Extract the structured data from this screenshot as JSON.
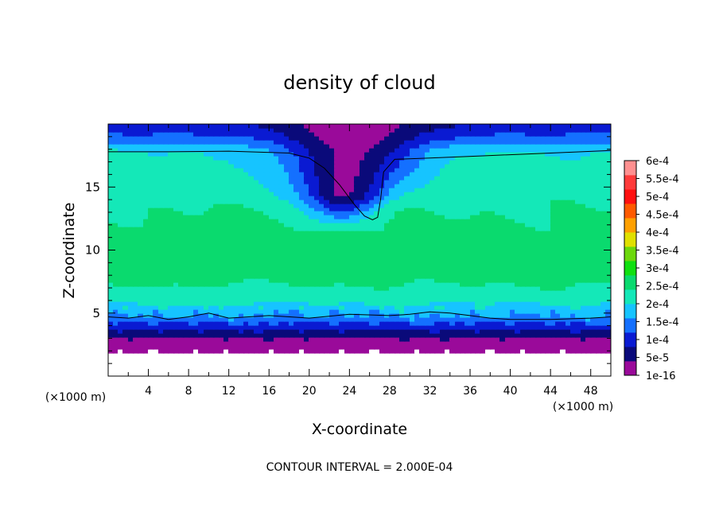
{
  "chart_data": {
    "type": "heatmap",
    "title": "density of cloud",
    "xlabel": "X-coordinate",
    "ylabel": "Z-coordinate",
    "x_unit_label": "(×1000 m)",
    "y_unit_label": "(×1000 m)",
    "footer": "CONTOUR INTERVAL = 2.000E-04",
    "xlim": [
      0,
      50
    ],
    "ylim": [
      0,
      20
    ],
    "x_ticks": [
      4,
      8,
      12,
      16,
      20,
      24,
      28,
      32,
      36,
      40,
      44,
      48
    ],
    "y_ticks": [
      5,
      10,
      15
    ],
    "colorbar": {
      "labels": [
        "6e-4",
        "5.5e-4",
        "5e-4",
        "4.5e-4",
        "4e-4",
        "3.5e-4",
        "3e-4",
        "2.5e-4",
        "2e-4",
        "1.5e-4",
        "1e-4",
        "5e-5",
        "1e-16"
      ],
      "colors": [
        "#9a0a9a",
        "#0a0a7a",
        "#0a1ad2",
        "#1470ff",
        "#16c4ff",
        "#14e8b8",
        "#0ada6e",
        "#10e010",
        "#6cd80c",
        "#e0e000",
        "#ffa000",
        "#ff5a00",
        "#ff1010",
        "#ff3a3a",
        "#ff9090"
      ]
    },
    "cloud_profile": {
      "z": [
        0.0,
        1.8,
        2.4,
        3.2,
        4.0,
        4.7,
        6.0,
        8.0,
        10.0,
        13.0,
        15.5,
        17.0,
        17.9,
        18.8,
        20.0
      ],
      "density": [
        0.0,
        0.0,
        5e-06,
        5e-05,
        0.0001,
        0.000155,
        0.00021,
        0.000255,
        0.00026,
        0.00024,
        0.00022,
        0.00021,
        0.0002,
        0.00014,
        9e-05
      ]
    },
    "hole": {
      "x_center": 24.5,
      "z_bottom": 12.4
    },
    "contours": [
      {
        "level": 0.0002,
        "upper_x": [
          0,
          6,
          12,
          18,
          20,
          21.5,
          23,
          24.5,
          25.5,
          26.3,
          26.8,
          27.1,
          27.4,
          28.5,
          32,
          38,
          44,
          50
        ],
        "upper_z": [
          17.8,
          17.8,
          17.85,
          17.7,
          17.3,
          16.5,
          15.2,
          13.6,
          12.7,
          12.4,
          12.6,
          14.0,
          16.2,
          17.2,
          17.3,
          17.5,
          17.7,
          17.9
        ],
        "lower_x": [
          0,
          2,
          4,
          6,
          8,
          10,
          12,
          16,
          20,
          24,
          28,
          30,
          32,
          34,
          36,
          38,
          40,
          44,
          48,
          50
        ],
        "lower_z": [
          4.7,
          4.6,
          4.8,
          4.5,
          4.7,
          5.0,
          4.6,
          4.8,
          4.6,
          4.9,
          4.8,
          4.9,
          5.1,
          5.0,
          4.8,
          4.6,
          4.5,
          4.5,
          4.6,
          4.7
        ]
      }
    ]
  }
}
